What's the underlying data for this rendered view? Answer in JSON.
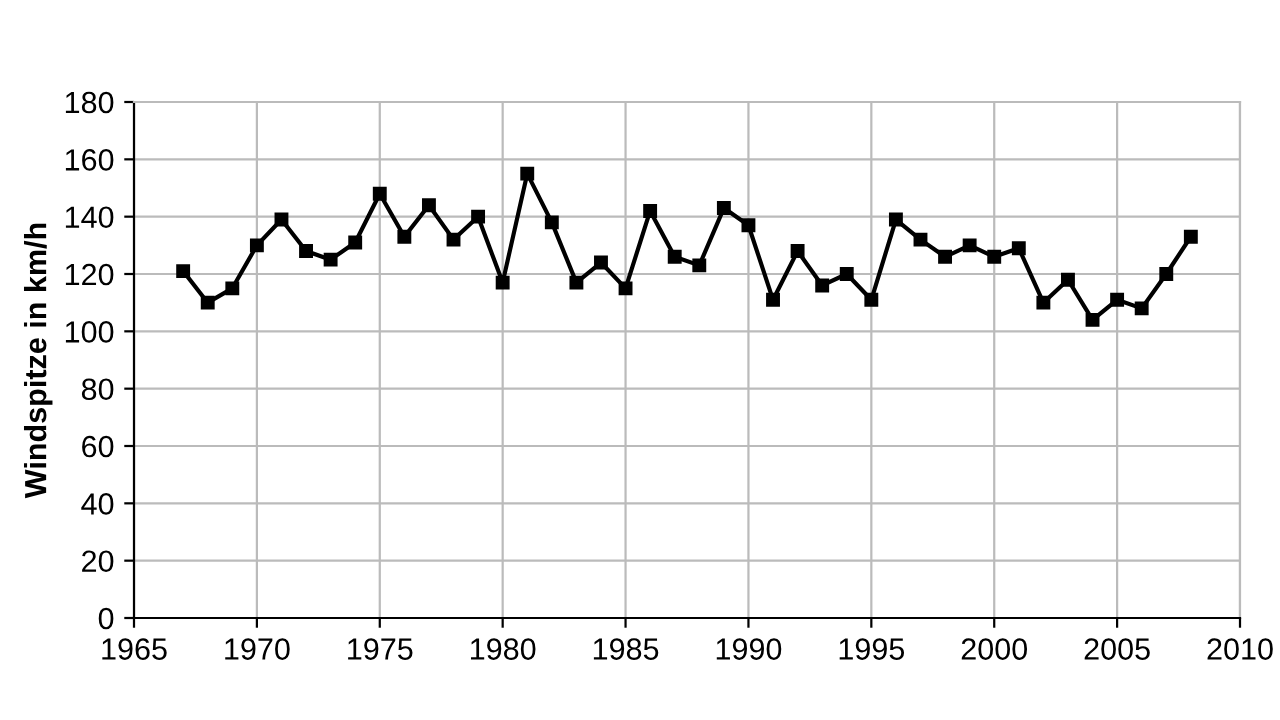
{
  "chart_data": {
    "type": "line",
    "ylabel": "Windspitze in km/h",
    "x": [
      1967,
      1968,
      1969,
      1970,
      1971,
      1972,
      1973,
      1974,
      1975,
      1976,
      1977,
      1978,
      1979,
      1980,
      1981,
      1982,
      1983,
      1984,
      1985,
      1986,
      1987,
      1988,
      1989,
      1990,
      1991,
      1992,
      1993,
      1994,
      1995,
      1996,
      1997,
      1998,
      1999,
      2000,
      2001,
      2002,
      2003,
      2004,
      2005,
      2006,
      2007,
      2008
    ],
    "series": [
      {
        "color": "#000000",
        "values": [
          121,
          110,
          115,
          130,
          139,
          128,
          125,
          131,
          148,
          133,
          144,
          132,
          140,
          117,
          155,
          138,
          117,
          124,
          115,
          142,
          126,
          123,
          143,
          137,
          111,
          128,
          116,
          120,
          111,
          139,
          132,
          126,
          130,
          126,
          129,
          110,
          118,
          104,
          111,
          108,
          120,
          133
        ]
      }
    ],
    "xlim": [
      1965,
      2010
    ],
    "xticks": [
      1965,
      1970,
      1975,
      1980,
      1985,
      1990,
      1995,
      2000,
      2005,
      2010
    ],
    "ylim": [
      0,
      180
    ],
    "yticks": [
      0,
      20,
      40,
      60,
      80,
      100,
      120,
      140,
      160,
      180
    ],
    "grid": true,
    "marker": "square",
    "line_style": "solid"
  }
}
